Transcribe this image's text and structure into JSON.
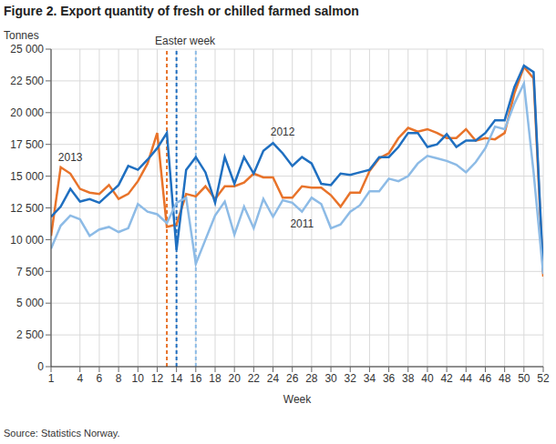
{
  "chart_data": {
    "type": "line",
    "title": "Figure 2. Export quantity of fresh or chilled farmed salmon",
    "y_label": "Tonnes",
    "x_label": "Week",
    "source": "Source: Statistics Norway.",
    "x": [
      1,
      2,
      3,
      4,
      5,
      6,
      7,
      8,
      9,
      10,
      11,
      12,
      13,
      14,
      15,
      16,
      17,
      18,
      19,
      20,
      21,
      22,
      23,
      24,
      25,
      26,
      27,
      28,
      29,
      30,
      31,
      32,
      33,
      34,
      35,
      36,
      37,
      38,
      39,
      40,
      41,
      42,
      43,
      44,
      45,
      46,
      47,
      48,
      49,
      50,
      51,
      52
    ],
    "series": [
      {
        "name": "2013",
        "color": "#e8732a",
        "values": [
          10300,
          15700,
          15200,
          14000,
          13700,
          13600,
          14300,
          13200,
          13600,
          14600,
          16000,
          18400,
          11000,
          11200,
          13600,
          13400,
          14200,
          13200,
          14200,
          14200,
          14500,
          15200,
          14900,
          14900,
          13300,
          13300,
          14200,
          14100,
          14100,
          13500,
          12600,
          13700,
          13700,
          15400,
          16400,
          16800,
          18000,
          18800,
          18500,
          18700,
          18400,
          18000,
          18000,
          18700,
          17800,
          18000,
          17900,
          18400,
          21500,
          23600,
          22700,
          7100
        ]
      },
      {
        "name": "2012",
        "color": "#1f6fc0",
        "values": [
          11800,
          12600,
          14000,
          13000,
          13200,
          12900,
          13600,
          14300,
          15800,
          15500,
          16300,
          17200,
          18400,
          9200,
          15500,
          16500,
          15300,
          12900,
          16500,
          14400,
          16500,
          15200,
          17000,
          17600,
          16800,
          15800,
          16500,
          16000,
          14400,
          14300,
          15200,
          15100,
          15300,
          15500,
          16500,
          16500,
          17300,
          18400,
          18400,
          17300,
          17500,
          18300,
          17300,
          17800,
          17800,
          18400,
          19400,
          19400,
          22000,
          23700,
          23200,
          7500
        ]
      },
      {
        "name": "2011",
        "color": "#8dbbe6",
        "values": [
          9300,
          11100,
          11900,
          11600,
          10300,
          10800,
          11000,
          10600,
          10900,
          12800,
          12200,
          12000,
          11300,
          12900,
          13300,
          8100,
          10000,
          11900,
          13000,
          10400,
          12600,
          10900,
          13200,
          11800,
          13100,
          12900,
          12200,
          13300,
          12800,
          10900,
          11200,
          12200,
          12700,
          13800,
          13800,
          14800,
          14600,
          15000,
          16000,
          16600,
          16400,
          16200,
          15900,
          15300,
          16100,
          17200,
          18900,
          18700,
          20700,
          22300,
          15300,
          7300
        ]
      }
    ],
    "annotations": [
      {
        "text": "2013",
        "x": 3,
        "y": 16500
      },
      {
        "text": "2012",
        "x": 25,
        "y": 18500
      },
      {
        "text": "2011",
        "x": 27,
        "y": 11300
      }
    ],
    "vertical_lines": {
      "label": "Easter week",
      "line_style": "dashed",
      "lines": [
        {
          "x": 13,
          "color": "#e8732a"
        },
        {
          "x": 14,
          "color": "#1f6fc0"
        },
        {
          "x": 16,
          "color": "#8dbbe6"
        }
      ]
    },
    "xlim": [
      1,
      52
    ],
    "xticks": [
      1,
      4,
      6,
      8,
      10,
      12,
      14,
      16,
      18,
      20,
      22,
      24,
      26,
      28,
      30,
      32,
      34,
      36,
      38,
      40,
      42,
      44,
      46,
      48,
      50,
      52
    ],
    "ylim": [
      0,
      25000
    ],
    "yticks": [
      0,
      {
        "value": 2500,
        "label": "2 500"
      },
      {
        "value": 5000,
        "label": "5 000"
      },
      {
        "value": 7500,
        "label": "7 500"
      },
      {
        "value": 10000,
        "label": "10 000"
      },
      {
        "value": 12500,
        "label": "12 500"
      },
      {
        "value": 15000,
        "label": "15 000"
      },
      {
        "value": 17500,
        "label": "17 500"
      },
      {
        "value": 20000,
        "label": "20 000"
      },
      {
        "value": 22500,
        "label": "22 500"
      },
      {
        "value": 25000,
        "label": "25 000"
      }
    ],
    "grid": true
  }
}
